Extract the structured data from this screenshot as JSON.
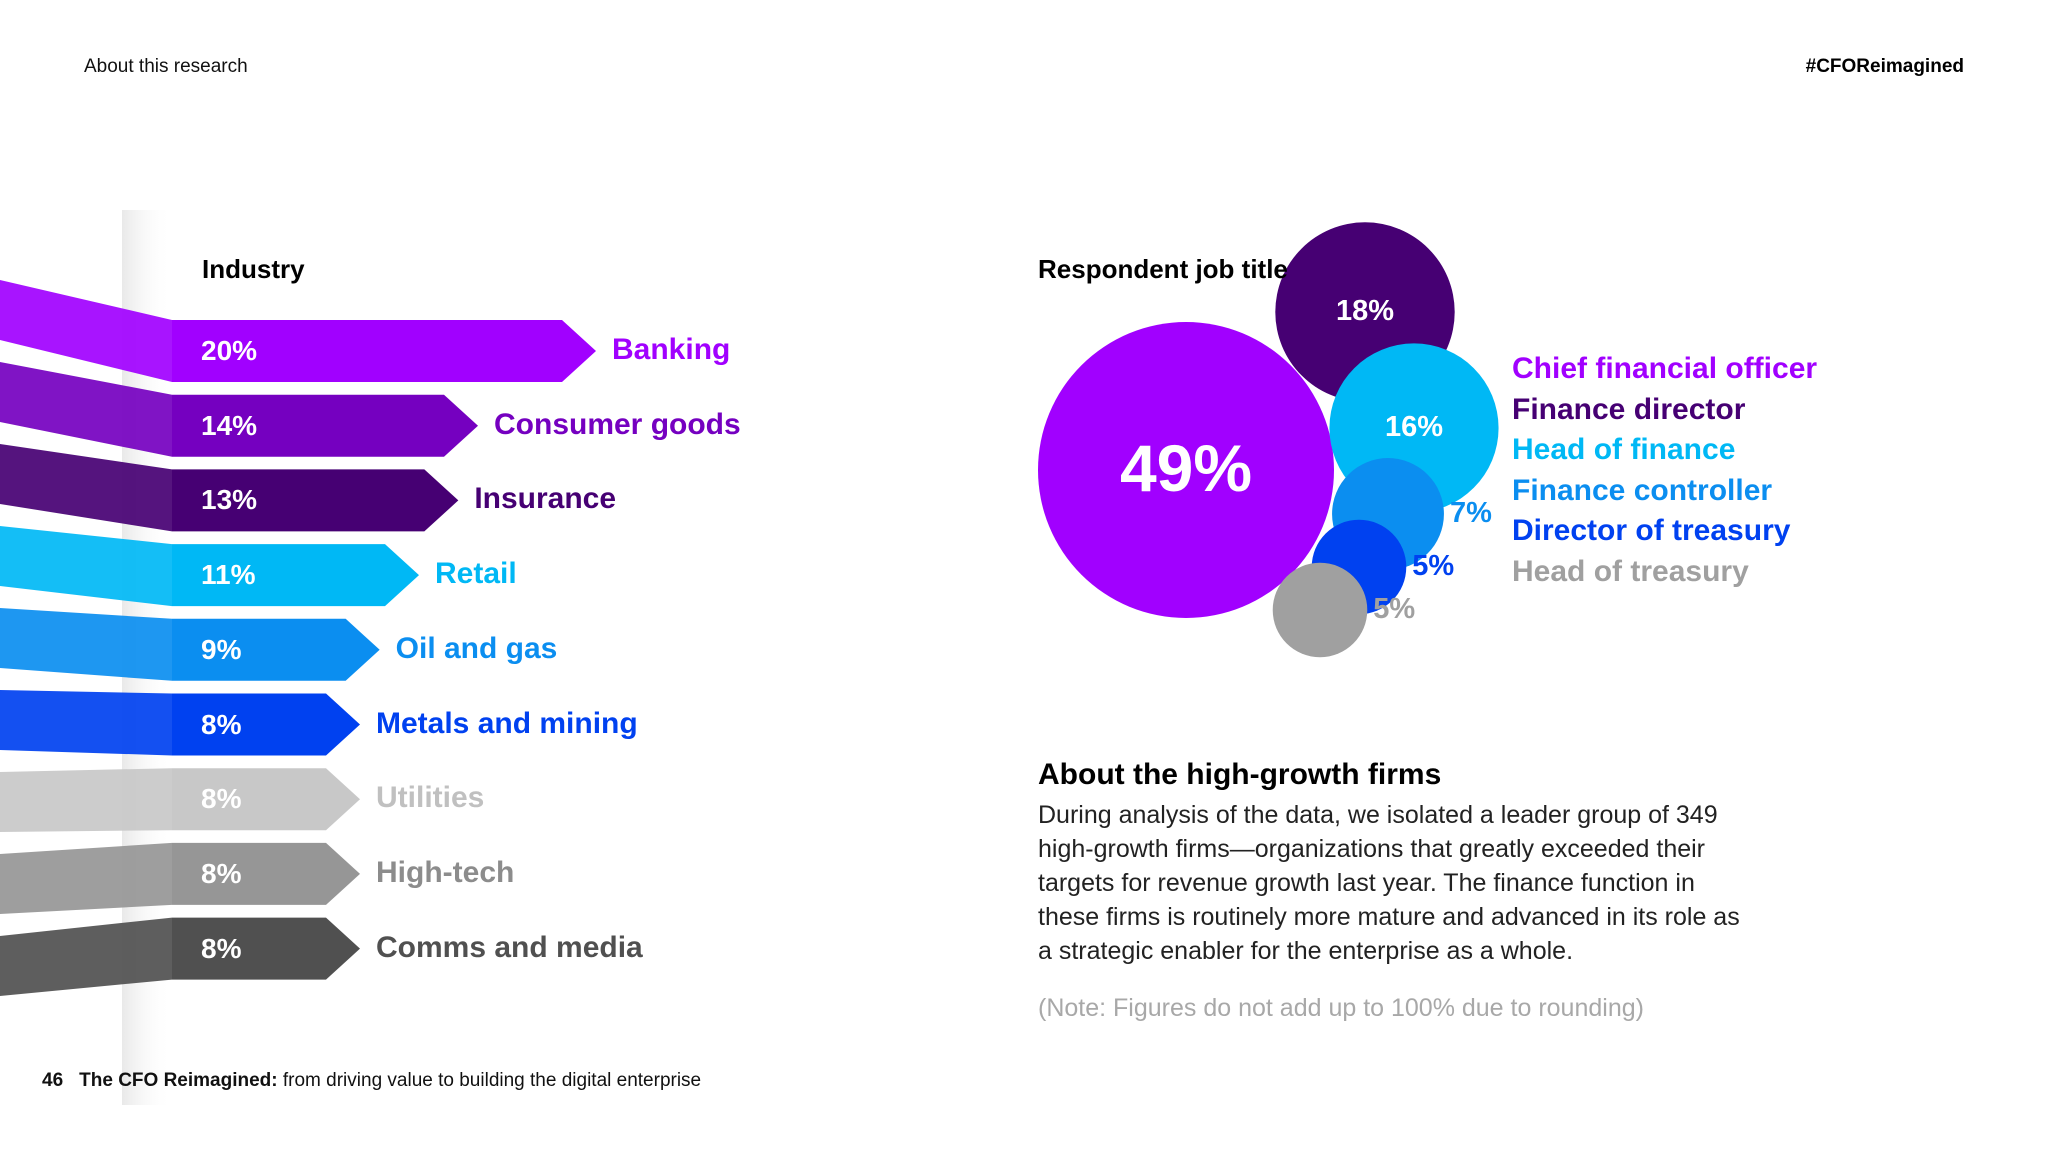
{
  "header": {
    "section": "About this research",
    "hashtag": "#CFOReimagined"
  },
  "industry": {
    "title": "Industry"
  },
  "job": {
    "title": "Respondent job title"
  },
  "chart_data": [
    {
      "type": "bar",
      "title": "Industry",
      "categories": [
        "Banking",
        "Consumer goods",
        "Insurance",
        "Retail",
        "Oil and gas",
        "Metals and mining",
        "Utilities",
        "High-tech",
        "Comms and media"
      ],
      "values": [
        20,
        14,
        13,
        11,
        9,
        8,
        8,
        8,
        8
      ],
      "value_labels": [
        "20%",
        "14%",
        "13%",
        "11%",
        "9%",
        "8%",
        "8%",
        "8%",
        "8%"
      ],
      "unit": "%",
      "colors": [
        "#a100ff",
        "#7500c0",
        "#460073",
        "#00b8f5",
        "#0b8ef0",
        "#0041f0",
        "#c8c8c8",
        "#969696",
        "#505050"
      ]
    },
    {
      "type": "bubble",
      "title": "Respondent job title",
      "categories": [
        "Chief financial officer",
        "Finance director",
        "Head of finance",
        "Finance controller",
        "Director of treasury",
        "Head of treasury"
      ],
      "values": [
        49,
        18,
        16,
        7,
        5,
        5
      ],
      "value_labels": [
        "49%",
        "18%",
        "16%",
        "7%",
        "5%",
        "5%"
      ],
      "unit": "%",
      "colors": [
        "#a100ff",
        "#460073",
        "#00b8f5",
        "#0b8ef0",
        "#0041f0",
        "#a0a0a0"
      ]
    }
  ],
  "about": {
    "title": "About the high-growth firms",
    "body": "During analysis of the data, we isolated a leader group of 349 high-growth firms—organizations that greatly exceeded their targets for revenue growth last year. The finance function in these firms is routinely more mature and advanced in its role as a strategic enabler for the enterprise as a whole.",
    "note": "(Note: Figures do not add up to 100% due to rounding)"
  },
  "footer": {
    "page": "46",
    "title": "The CFO Reimagined:",
    "subtitle": " from driving value to building the digital enterprise"
  }
}
